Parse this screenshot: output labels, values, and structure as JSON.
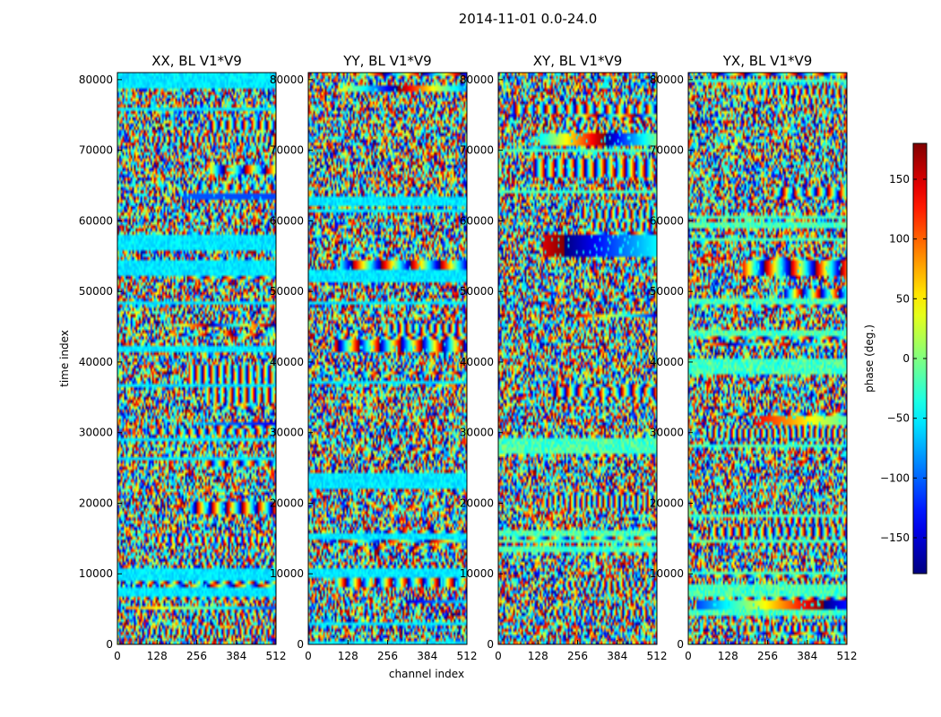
{
  "figure": {
    "suptitle": "2014-11-01 0.0-24.0"
  },
  "chart_data": {
    "type": "heatmap",
    "baseline": "V1*V9",
    "date_range": "2014-11-01 0.0-24.0",
    "x_axis": {
      "label": "channel index",
      "range": [
        0,
        512
      ],
      "ticks": [
        0,
        128,
        256,
        384,
        512
      ]
    },
    "y_axis": {
      "label": "time index",
      "range": [
        0,
        81000
      ],
      "ticks": [
        0,
        10000,
        20000,
        30000,
        40000,
        50000,
        60000,
        70000,
        80000
      ]
    },
    "colorbar": {
      "label": "phase (deg.)",
      "range": [
        -180,
        180
      ],
      "ticks": [
        -150,
        -100,
        -50,
        0,
        50,
        100,
        150
      ],
      "colormap": "jet"
    },
    "panels": [
      {
        "title": "XX, BL V1*V9",
        "polarization": "XX"
      },
      {
        "title": "YY, BL V1*V9",
        "polarization": "YY"
      },
      {
        "title": "XY, BL V1*V9",
        "polarization": "XY"
      },
      {
        "title": "YX, BL V1*V9",
        "polarization": "YX"
      }
    ]
  }
}
